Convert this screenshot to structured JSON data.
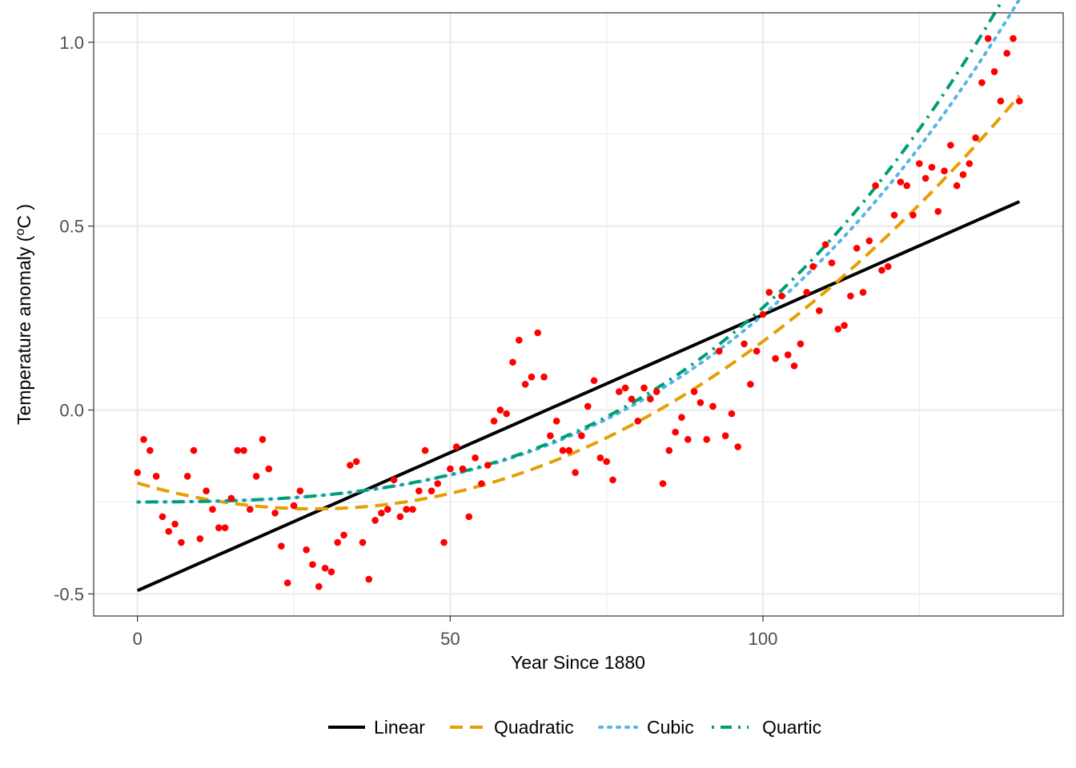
{
  "chart_data": {
    "type": "scatter",
    "title": "",
    "xlabel": "Year Since 1880",
    "ylabel_prefix": "Temperature anomaly  (",
    "ylabel_degree": "o",
    "ylabel_suffix": "C )",
    "xlim": [
      -7,
      148
    ],
    "ylim": [
      -0.56,
      1.08
    ],
    "x_ticks": [
      0,
      50,
      100
    ],
    "x_tick_labels": [
      "0",
      "50",
      "100"
    ],
    "y_ticks": [
      -0.5,
      0,
      0.5,
      1
    ],
    "y_tick_labels": [
      "-0.5",
      "0.0",
      "0.5",
      "1.0"
    ],
    "grid": true,
    "legend_position": "bottom",
    "points_color": "#ff0000",
    "points": {
      "x": [
        0,
        1,
        2,
        3,
        4,
        5,
        6,
        7,
        8,
        9,
        10,
        11,
        12,
        13,
        14,
        15,
        16,
        17,
        18,
        19,
        20,
        21,
        22,
        23,
        24,
        25,
        26,
        27,
        28,
        29,
        30,
        31,
        32,
        33,
        34,
        35,
        36,
        37,
        38,
        39,
        40,
        41,
        42,
        43,
        44,
        45,
        46,
        47,
        48,
        49,
        50,
        51,
        52,
        53,
        54,
        55,
        56,
        57,
        58,
        59,
        60,
        61,
        62,
        63,
        64,
        65,
        66,
        67,
        68,
        69,
        70,
        71,
        72,
        73,
        74,
        75,
        76,
        77,
        78,
        79,
        80,
        81,
        82,
        83,
        84,
        85,
        86,
        87,
        88,
        89,
        90,
        91,
        92,
        93,
        94,
        95,
        96,
        97,
        98,
        99,
        100,
        101,
        102,
        103,
        104,
        105,
        106,
        107,
        108,
        109,
        110,
        111,
        112,
        113,
        114,
        115,
        116,
        117,
        118,
        119,
        120,
        121,
        122,
        123,
        124,
        125,
        126,
        127,
        128,
        129,
        130,
        131,
        132,
        133,
        134,
        135,
        136,
        137,
        138,
        139,
        140,
        141
      ],
      "y": [
        -0.17,
        -0.08,
        -0.11,
        -0.18,
        -0.29,
        -0.33,
        -0.31,
        -0.36,
        -0.18,
        -0.11,
        -0.35,
        -0.22,
        -0.27,
        -0.32,
        -0.32,
        -0.24,
        -0.11,
        -0.11,
        -0.27,
        -0.18,
        -0.08,
        -0.16,
        -0.28,
        -0.37,
        -0.47,
        -0.26,
        -0.22,
        -0.38,
        -0.42,
        -0.48,
        -0.43,
        -0.44,
        -0.36,
        -0.34,
        -0.15,
        -0.14,
        -0.36,
        -0.46,
        -0.3,
        -0.28,
        -0.27,
        -0.19,
        -0.29,
        -0.27,
        -0.27,
        -0.22,
        -0.11,
        -0.22,
        -0.2,
        -0.36,
        -0.16,
        -0.1,
        -0.16,
        -0.29,
        -0.13,
        -0.2,
        -0.15,
        -0.03,
        0.0,
        -0.01,
        0.13,
        0.19,
        0.07,
        0.09,
        0.21,
        0.09,
        -0.07,
        -0.03,
        -0.11,
        -0.11,
        -0.17,
        -0.07,
        0.01,
        0.08,
        -0.13,
        -0.14,
        -0.19,
        0.05,
        0.06,
        0.03,
        -0.03,
        0.06,
        0.03,
        0.05,
        -0.2,
        -0.11,
        -0.06,
        -0.02,
        -0.08,
        0.05,
        0.02,
        -0.08,
        0.01,
        0.16,
        -0.07,
        -0.01,
        -0.1,
        0.18,
        0.07,
        0.16,
        0.26,
        0.32,
        0.14,
        0.31,
        0.15,
        0.12,
        0.18,
        0.32,
        0.39,
        0.27,
        0.45,
        0.4,
        0.22,
        0.23,
        0.31,
        0.44,
        0.32,
        0.46,
        0.61,
        0.38,
        0.39,
        0.53,
        0.62,
        0.61,
        0.53,
        0.67,
        0.63,
        0.66,
        0.54,
        0.65,
        0.72,
        0.61,
        0.64,
        0.67,
        0.74,
        0.89,
        1.01,
        0.92,
        0.84,
        0.97,
        1.01,
        0.84
      ]
    },
    "series": [
      {
        "name": "Linear",
        "degree": 1,
        "coefficients": [
          -0.4909,
          0.0075
        ],
        "color": "#000000",
        "style": "solid"
      },
      {
        "name": "Quadratic",
        "degree": 2,
        "coefficients": [
          -0.1985,
          -0.00498,
          8.83e-05
        ],
        "color": "#e69f00",
        "style": "dashed"
      },
      {
        "name": "Cubic",
        "degree": 3,
        "coefficients": [
          -0.25,
          3.2e-05,
          6.75e-06,
          4.38e-07
        ],
        "color": "#56b4e9",
        "style": "dotted"
      },
      {
        "name": "Quartic",
        "degree": 4,
        "coefficients": [
          -0.25,
          3.2e-05,
          6.75e-06,
          4.38e-07,
          2e-10
        ],
        "color": "#009e73",
        "style": "dotdash"
      }
    ]
  }
}
